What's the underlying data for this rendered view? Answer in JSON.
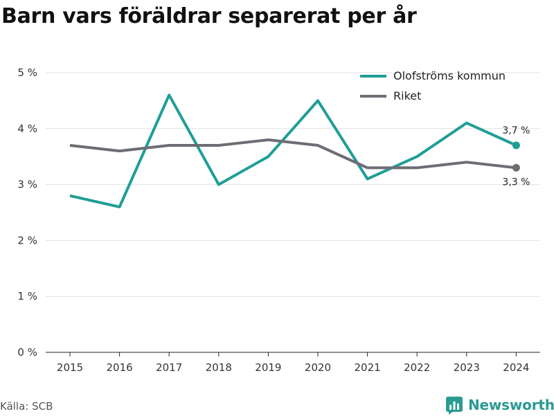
{
  "chart_data": {
    "type": "line",
    "title": "Barn vars föräldrar separerat per år",
    "xlabel": "",
    "ylabel": "",
    "categories": [
      "2015",
      "2016",
      "2017",
      "2018",
      "2019",
      "2020",
      "2021",
      "2022",
      "2023",
      "2024"
    ],
    "y_ticks": [
      "0 %",
      "1 %",
      "2 %",
      "3 %",
      "4 %",
      "5 %"
    ],
    "ylim": [
      0,
      5
    ],
    "grid": true,
    "legend_position": "top-right",
    "series": [
      {
        "name": "Olofströms kommun",
        "color": "#1f9e96",
        "values": [
          2.8,
          2.6,
          4.6,
          3.0,
          3.5,
          4.5,
          3.1,
          3.5,
          4.1,
          3.7
        ],
        "end_label": "3,7 %"
      },
      {
        "name": "Riket",
        "color": "#6e6c74",
        "values": [
          3.7,
          3.6,
          3.7,
          3.7,
          3.8,
          3.7,
          3.3,
          3.3,
          3.4,
          3.3
        ],
        "end_label": "3,3 %"
      }
    ]
  },
  "footer": {
    "source": "Källa: SCB",
    "brand": "Newsworthy",
    "brand_color": "#2b9a93"
  }
}
